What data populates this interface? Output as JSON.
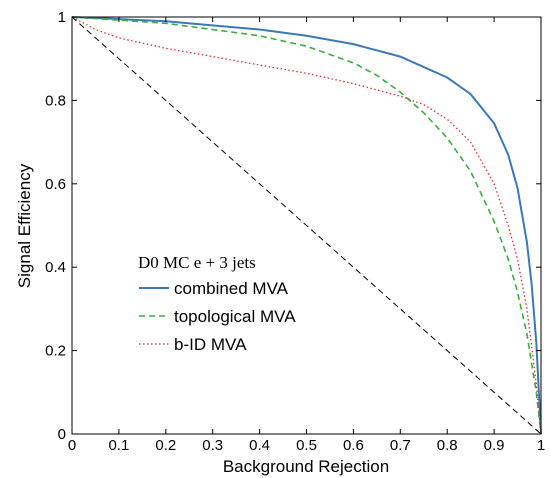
{
  "chart_data": {
    "type": "line",
    "xlabel": "Background Rejection",
    "ylabel": "Signal Efficiency",
    "xlim": [
      0,
      1
    ],
    "ylim": [
      0,
      1
    ],
    "xticks": [
      "0",
      "0.1",
      "0.2",
      "0.3",
      "0.4",
      "0.5",
      "0.6",
      "0.7",
      "0.8",
      "0.9",
      "1"
    ],
    "yticks": [
      "0",
      "0.2",
      "0.4",
      "0.6",
      "0.8",
      "1"
    ],
    "grid": false,
    "legend_position": "center-left",
    "legend_title": "D0 MC e + 3 jets",
    "series": [
      {
        "name": "combined MVA",
        "color": "#3b78b8",
        "style": "solid",
        "x": [
          0,
          0.2,
          0.4,
          0.5,
          0.6,
          0.7,
          0.8,
          0.85,
          0.9,
          0.93,
          0.95,
          0.97,
          0.98,
          0.99,
          1.0
        ],
        "y": [
          1.0,
          0.99,
          0.97,
          0.955,
          0.935,
          0.905,
          0.855,
          0.815,
          0.745,
          0.67,
          0.59,
          0.46,
          0.36,
          0.22,
          0.0
        ]
      },
      {
        "name": "topological MVA",
        "color": "#3cae3c",
        "style": "dashed",
        "x": [
          0,
          0.2,
          0.4,
          0.5,
          0.6,
          0.65,
          0.7,
          0.75,
          0.8,
          0.85,
          0.9,
          0.93,
          0.95,
          0.97,
          0.99,
          1.0
        ],
        "y": [
          1.0,
          0.985,
          0.955,
          0.93,
          0.89,
          0.86,
          0.82,
          0.77,
          0.71,
          0.63,
          0.51,
          0.42,
          0.34,
          0.24,
          0.1,
          0.0
        ]
      },
      {
        "name": "b-ID MVA",
        "color": "#e03030",
        "style": "dotted",
        "x": [
          0,
          0.05,
          0.1,
          0.2,
          0.3,
          0.4,
          0.5,
          0.6,
          0.65,
          0.7,
          0.75,
          0.8,
          0.85,
          0.9,
          0.93,
          0.95,
          0.97,
          0.99,
          1.0
        ],
        "y": [
          1.0,
          0.97,
          0.95,
          0.925,
          0.905,
          0.885,
          0.865,
          0.84,
          0.825,
          0.81,
          0.79,
          0.755,
          0.7,
          0.6,
          0.5,
          0.42,
          0.3,
          0.12,
          0.0
        ]
      },
      {
        "name": "",
        "color": "#000000",
        "style": "dashed",
        "x": [
          0,
          1
        ],
        "y": [
          1,
          0
        ]
      }
    ]
  }
}
